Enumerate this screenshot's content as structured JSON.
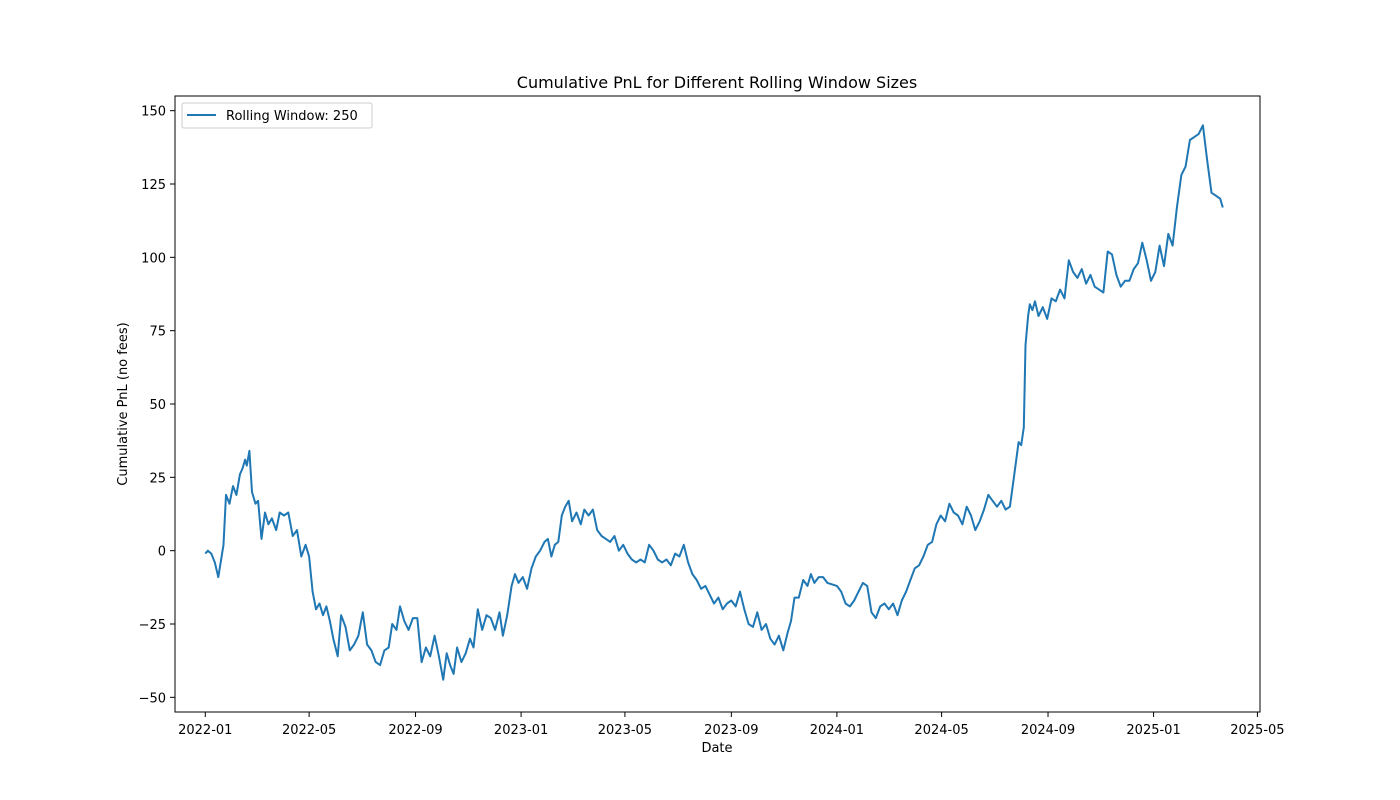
{
  "chart_data": {
    "type": "line",
    "title": "Cumulative PnL for Different Rolling Window Sizes",
    "xlabel": "Date",
    "ylabel": "Cumulative PnL (no fees)",
    "x_range": [
      "2021-11-27",
      "2025-05-04"
    ],
    "y_range": [
      -55,
      155
    ],
    "x_ticks": [
      "2022-01-01",
      "2022-05-01",
      "2022-09-01",
      "2023-01-01",
      "2023-05-01",
      "2023-09-01",
      "2024-01-01",
      "2024-05-01",
      "2024-09-01",
      "2025-01-01",
      "2025-05-01"
    ],
    "x_tick_labels": [
      "2022-01",
      "2022-05",
      "2022-09",
      "2023-01",
      "2023-05",
      "2023-09",
      "2024-01",
      "2024-05",
      "2024-09",
      "2025-01",
      "2025-05"
    ],
    "y_ticks": [
      -50,
      -25,
      0,
      25,
      50,
      75,
      100,
      125,
      150
    ],
    "y_tick_labels": [
      "−50",
      "−25",
      "0",
      "25",
      "50",
      "75",
      "100",
      "125",
      "150"
    ],
    "grid": false,
    "legend_position": "top-left",
    "series": [
      {
        "name": "Rolling Window: 250",
        "color": "#1f77b4",
        "points": [
          [
            "2022-01-01",
            -1
          ],
          [
            "2022-01-04",
            0
          ],
          [
            "2022-01-08",
            -1
          ],
          [
            "2022-01-12",
            -4
          ],
          [
            "2022-01-16",
            -9
          ],
          [
            "2022-01-22",
            2
          ],
          [
            "2022-01-25",
            19
          ],
          [
            "2022-01-29",
            16
          ],
          [
            "2022-02-02",
            22
          ],
          [
            "2022-02-06",
            19
          ],
          [
            "2022-02-10",
            26
          ],
          [
            "2022-02-13",
            28
          ],
          [
            "2022-02-16",
            31
          ],
          [
            "2022-02-18",
            29
          ],
          [
            "2022-02-21",
            34
          ],
          [
            "2022-02-24",
            20
          ],
          [
            "2022-02-28",
            16
          ],
          [
            "2022-03-03",
            17
          ],
          [
            "2022-03-07",
            4
          ],
          [
            "2022-03-11",
            13
          ],
          [
            "2022-03-15",
            9
          ],
          [
            "2022-03-19",
            11
          ],
          [
            "2022-03-24",
            7
          ],
          [
            "2022-03-28",
            13
          ],
          [
            "2022-04-02",
            12
          ],
          [
            "2022-04-07",
            13
          ],
          [
            "2022-04-12",
            5
          ],
          [
            "2022-04-17",
            7
          ],
          [
            "2022-04-22",
            -2
          ],
          [
            "2022-04-27",
            2
          ],
          [
            "2022-05-01",
            -2
          ],
          [
            "2022-05-05",
            -14
          ],
          [
            "2022-05-09",
            -20
          ],
          [
            "2022-05-13",
            -18
          ],
          [
            "2022-05-17",
            -22
          ],
          [
            "2022-05-21",
            -19
          ],
          [
            "2022-05-25",
            -24
          ],
          [
            "2022-05-29",
            -30
          ],
          [
            "2022-06-03",
            -36
          ],
          [
            "2022-06-07",
            -22
          ],
          [
            "2022-06-12",
            -26
          ],
          [
            "2022-06-17",
            -34
          ],
          [
            "2022-06-22",
            -32
          ],
          [
            "2022-06-27",
            -29
          ],
          [
            "2022-07-02",
            -21
          ],
          [
            "2022-07-07",
            -32
          ],
          [
            "2022-07-12",
            -34
          ],
          [
            "2022-07-17",
            -38
          ],
          [
            "2022-07-22",
            -39
          ],
          [
            "2022-07-27",
            -34
          ],
          [
            "2022-08-01",
            -33
          ],
          [
            "2022-08-05",
            -25
          ],
          [
            "2022-08-10",
            -27
          ],
          [
            "2022-08-14",
            -19
          ],
          [
            "2022-08-19",
            -24
          ],
          [
            "2022-08-24",
            -27
          ],
          [
            "2022-08-29",
            -23
          ],
          [
            "2022-09-03",
            -23
          ],
          [
            "2022-09-08",
            -38
          ],
          [
            "2022-09-13",
            -33
          ],
          [
            "2022-09-18",
            -36
          ],
          [
            "2022-09-23",
            -29
          ],
          [
            "2022-09-28",
            -36
          ],
          [
            "2022-10-03",
            -44
          ],
          [
            "2022-10-07",
            -35
          ],
          [
            "2022-10-11",
            -39
          ],
          [
            "2022-10-15",
            -42
          ],
          [
            "2022-10-19",
            -33
          ],
          [
            "2022-10-24",
            -38
          ],
          [
            "2022-10-29",
            -35
          ],
          [
            "2022-11-03",
            -30
          ],
          [
            "2022-11-07",
            -33
          ],
          [
            "2022-11-12",
            -20
          ],
          [
            "2022-11-17",
            -27
          ],
          [
            "2022-11-22",
            -22
          ],
          [
            "2022-11-27",
            -23
          ],
          [
            "2022-12-02",
            -27
          ],
          [
            "2022-12-07",
            -21
          ],
          [
            "2022-12-11",
            -29
          ],
          [
            "2022-12-16",
            -22
          ],
          [
            "2022-12-21",
            -12
          ],
          [
            "2022-12-25",
            -8
          ],
          [
            "2022-12-29",
            -11
          ],
          [
            "2023-01-03",
            -9
          ],
          [
            "2023-01-08",
            -13
          ],
          [
            "2023-01-13",
            -6
          ],
          [
            "2023-01-18",
            -2
          ],
          [
            "2023-01-23",
            0
          ],
          [
            "2023-01-28",
            3
          ],
          [
            "2023-02-01",
            4
          ],
          [
            "2023-02-05",
            -2
          ],
          [
            "2023-02-09",
            2
          ],
          [
            "2023-02-13",
            3
          ],
          [
            "2023-02-17",
            12
          ],
          [
            "2023-02-21",
            15
          ],
          [
            "2023-02-25",
            17
          ],
          [
            "2023-03-01",
            10
          ],
          [
            "2023-03-06",
            13
          ],
          [
            "2023-03-11",
            9
          ],
          [
            "2023-03-15",
            14
          ],
          [
            "2023-03-20",
            12
          ],
          [
            "2023-03-25",
            14
          ],
          [
            "2023-03-30",
            7
          ],
          [
            "2023-04-04",
            5
          ],
          [
            "2023-04-09",
            4
          ],
          [
            "2023-04-14",
            3
          ],
          [
            "2023-04-19",
            5
          ],
          [
            "2023-04-24",
            0
          ],
          [
            "2023-04-29",
            2
          ],
          [
            "2023-05-04",
            -1
          ],
          [
            "2023-05-09",
            -3
          ],
          [
            "2023-05-14",
            -4
          ],
          [
            "2023-05-19",
            -3
          ],
          [
            "2023-05-24",
            -4
          ],
          [
            "2023-05-29",
            2
          ],
          [
            "2023-06-03",
            0
          ],
          [
            "2023-06-08",
            -3
          ],
          [
            "2023-06-13",
            -4
          ],
          [
            "2023-06-18",
            -3
          ],
          [
            "2023-06-23",
            -5
          ],
          [
            "2023-06-28",
            -1
          ],
          [
            "2023-07-03",
            -2
          ],
          [
            "2023-07-08",
            2
          ],
          [
            "2023-07-13",
            -4
          ],
          [
            "2023-07-18",
            -8
          ],
          [
            "2023-07-23",
            -10
          ],
          [
            "2023-07-28",
            -13
          ],
          [
            "2023-08-02",
            -12
          ],
          [
            "2023-08-07",
            -15
          ],
          [
            "2023-08-12",
            -18
          ],
          [
            "2023-08-17",
            -16
          ],
          [
            "2023-08-22",
            -20
          ],
          [
            "2023-08-27",
            -18
          ],
          [
            "2023-09-01",
            -17
          ],
          [
            "2023-09-06",
            -19
          ],
          [
            "2023-09-11",
            -14
          ],
          [
            "2023-09-16",
            -20
          ],
          [
            "2023-09-21",
            -25
          ],
          [
            "2023-09-26",
            -26
          ],
          [
            "2023-10-01",
            -21
          ],
          [
            "2023-10-06",
            -27
          ],
          [
            "2023-10-11",
            -25
          ],
          [
            "2023-10-16",
            -30
          ],
          [
            "2023-10-21",
            -32
          ],
          [
            "2023-10-26",
            -29
          ],
          [
            "2023-10-31",
            -34
          ],
          [
            "2023-11-05",
            -28
          ],
          [
            "2023-11-09",
            -24
          ],
          [
            "2023-11-13",
            -16
          ],
          [
            "2023-11-18",
            -16
          ],
          [
            "2023-11-23",
            -10
          ],
          [
            "2023-11-28",
            -12
          ],
          [
            "2023-12-02",
            -8
          ],
          [
            "2023-12-06",
            -11
          ],
          [
            "2023-12-11",
            -9
          ],
          [
            "2023-12-16",
            -9
          ],
          [
            "2023-12-21",
            -11
          ],
          [
            "2024-01-01",
            -12
          ],
          [
            "2024-01-06",
            -14
          ],
          [
            "2024-01-11",
            -18
          ],
          [
            "2024-01-16",
            -19
          ],
          [
            "2024-01-21",
            -17
          ],
          [
            "2024-01-26",
            -14
          ],
          [
            "2024-01-31",
            -11
          ],
          [
            "2024-02-05",
            -12
          ],
          [
            "2024-02-10",
            -21
          ],
          [
            "2024-02-15",
            -23
          ],
          [
            "2024-02-20",
            -19
          ],
          [
            "2024-02-25",
            -18
          ],
          [
            "2024-03-01",
            -20
          ],
          [
            "2024-03-06",
            -18
          ],
          [
            "2024-03-11",
            -22
          ],
          [
            "2024-03-16",
            -17
          ],
          [
            "2024-03-21",
            -14
          ],
          [
            "2024-03-26",
            -10
          ],
          [
            "2024-03-31",
            -6
          ],
          [
            "2024-04-05",
            -5
          ],
          [
            "2024-04-10",
            -2
          ],
          [
            "2024-04-15",
            2
          ],
          [
            "2024-04-20",
            3
          ],
          [
            "2024-04-25",
            9
          ],
          [
            "2024-04-30",
            12
          ],
          [
            "2024-05-05",
            10
          ],
          [
            "2024-05-10",
            16
          ],
          [
            "2024-05-15",
            13
          ],
          [
            "2024-05-20",
            12
          ],
          [
            "2024-05-25",
            9
          ],
          [
            "2024-05-30",
            15
          ],
          [
            "2024-06-04",
            12
          ],
          [
            "2024-06-09",
            7
          ],
          [
            "2024-06-14",
            10
          ],
          [
            "2024-06-19",
            14
          ],
          [
            "2024-06-24",
            19
          ],
          [
            "2024-06-29",
            17
          ],
          [
            "2024-07-04",
            15
          ],
          [
            "2024-07-09",
            17
          ],
          [
            "2024-07-14",
            14
          ],
          [
            "2024-07-19",
            15
          ],
          [
            "2024-07-24",
            26
          ],
          [
            "2024-07-29",
            37
          ],
          [
            "2024-08-01",
            36
          ],
          [
            "2024-08-04",
            42
          ],
          [
            "2024-08-06",
            70
          ],
          [
            "2024-08-09",
            80
          ],
          [
            "2024-08-11",
            84
          ],
          [
            "2024-08-14",
            82
          ],
          [
            "2024-08-17",
            85
          ],
          [
            "2024-08-21",
            80
          ],
          [
            "2024-08-26",
            83
          ],
          [
            "2024-08-31",
            79
          ],
          [
            "2024-09-05",
            86
          ],
          [
            "2024-09-10",
            85
          ],
          [
            "2024-09-15",
            89
          ],
          [
            "2024-09-20",
            86
          ],
          [
            "2024-09-25",
            99
          ],
          [
            "2024-09-30",
            95
          ],
          [
            "2024-10-05",
            93
          ],
          [
            "2024-10-10",
            96
          ],
          [
            "2024-10-15",
            91
          ],
          [
            "2024-10-20",
            94
          ],
          [
            "2024-10-25",
            90
          ],
          [
            "2024-10-30",
            89
          ],
          [
            "2024-11-04",
            88
          ],
          [
            "2024-11-09",
            102
          ],
          [
            "2024-11-14",
            101
          ],
          [
            "2024-11-19",
            94
          ],
          [
            "2024-11-24",
            90
          ],
          [
            "2024-11-29",
            92
          ],
          [
            "2024-12-04",
            92
          ],
          [
            "2024-12-09",
            96
          ],
          [
            "2024-12-14",
            98
          ],
          [
            "2024-12-19",
            105
          ],
          [
            "2024-12-24",
            99
          ],
          [
            "2024-12-29",
            92
          ],
          [
            "2025-01-03",
            95
          ],
          [
            "2025-01-08",
            104
          ],
          [
            "2025-01-13",
            97
          ],
          [
            "2025-01-18",
            108
          ],
          [
            "2025-01-23",
            104
          ],
          [
            "2025-01-28",
            117
          ],
          [
            "2025-02-02",
            128
          ],
          [
            "2025-02-07",
            131
          ],
          [
            "2025-02-12",
            140
          ],
          [
            "2025-02-17",
            141
          ],
          [
            "2025-02-22",
            142
          ],
          [
            "2025-02-27",
            145
          ],
          [
            "2025-03-04",
            133
          ],
          [
            "2025-03-09",
            122
          ],
          [
            "2025-03-14",
            121
          ],
          [
            "2025-03-19",
            120
          ],
          [
            "2025-03-22",
            117
          ]
        ]
      }
    ]
  }
}
